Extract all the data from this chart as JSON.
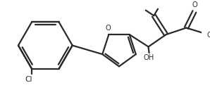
{
  "line_color": "#2a2a2a",
  "line_width": 1.6,
  "bg_color": "#ffffff",
  "label_fontsize": 7.2,
  "figsize": [
    2.98,
    1.35
  ],
  "dpi": 100,
  "xlim": [
    0,
    298
  ],
  "ylim": [
    0,
    135
  ]
}
